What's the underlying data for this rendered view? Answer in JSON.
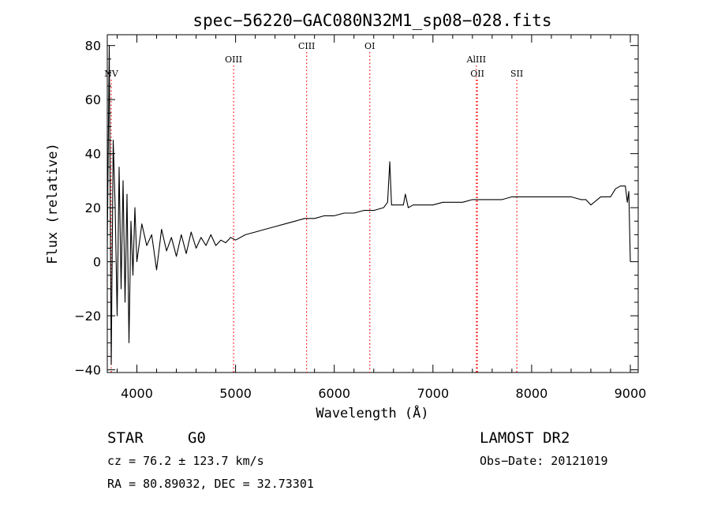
{
  "chart_data": {
    "type": "line",
    "title": "spec−56220−GAC080N32M1_sp08−028.fits",
    "xlabel": "Wavelength (Å)",
    "ylabel": "Flux (relative)",
    "xlim": [
      3700,
      9080
    ],
    "ylim": [
      -41,
      84
    ],
    "x_ticks": [
      4000,
      5000,
      6000,
      7000,
      8000,
      9000
    ],
    "y_ticks": [
      -40,
      -20,
      0,
      20,
      40,
      60,
      80
    ],
    "x_tick_labels": [
      "4000",
      "5000",
      "6000",
      "7000",
      "8000",
      "9000"
    ],
    "y_tick_labels": [
      "−40",
      "−20",
      "0",
      "20",
      "40",
      "60",
      "80"
    ],
    "grid": false,
    "line_color": "#000000",
    "marker_color": "#ff0000",
    "spectral_lines": [
      {
        "label": "NV",
        "x": 3740,
        "row": 2
      },
      {
        "label": "OIII",
        "x": 4980,
        "row": 1
      },
      {
        "label": "CIII",
        "x": 5720,
        "row": 0
      },
      {
        "label": "OI",
        "x": 6360,
        "row": 0
      },
      {
        "label": "AlIII",
        "x": 7440,
        "row": 1
      },
      {
        "label": "OII",
        "x": 7450,
        "row": 2
      },
      {
        "label": "SII",
        "x": 7850,
        "row": 2
      }
    ],
    "series": [
      {
        "x": [
          3700,
          3720,
          3740,
          3760,
          3780,
          3800,
          3820,
          3840,
          3860,
          3880,
          3900,
          3920,
          3940,
          3960,
          3980,
          4000,
          4050,
          4100,
          4150,
          4200,
          4250,
          4300,
          4350,
          4400,
          4450,
          4500,
          4550,
          4600,
          4650,
          4700,
          4750,
          4800,
          4850,
          4900,
          4950,
          5000,
          5100,
          5200,
          5300,
          5400,
          5500,
          5600,
          5700,
          5800,
          5900,
          6000,
          6100,
          6200,
          6300,
          6400,
          6500,
          6540,
          6563,
          6580,
          6600,
          6650,
          6700,
          6720,
          6750,
          6800,
          6900,
          7000,
          7100,
          7200,
          7300,
          7400,
          7500,
          7600,
          7700,
          7800,
          7900,
          8000,
          8100,
          8200,
          8300,
          8400,
          8500,
          8550,
          8600,
          8700,
          8800,
          8850,
          8900,
          8950,
          8970,
          8985,
          9000
        ],
        "values": [
          5,
          80,
          -38,
          45,
          20,
          -20,
          35,
          -10,
          30,
          -15,
          25,
          -30,
          15,
          -5,
          20,
          0,
          14,
          6,
          10,
          -3,
          12,
          4,
          9,
          2,
          10,
          3,
          11,
          5,
          9,
          6,
          10,
          6,
          8,
          7,
          9,
          8,
          10,
          11,
          12,
          13,
          14,
          15,
          16,
          16,
          17,
          17,
          18,
          18,
          19,
          19,
          20,
          22,
          37,
          21,
          21,
          21,
          21,
          25,
          20,
          21,
          21,
          21,
          22,
          22,
          22,
          23,
          23,
          23,
          23,
          24,
          24,
          24,
          24,
          24,
          24,
          24,
          23,
          23,
          21,
          24,
          24,
          27,
          28,
          28,
          22,
          26,
          0
        ]
      }
    ]
  },
  "footer": {
    "object_class": "STAR",
    "subclass": "G0",
    "survey": "LAMOST DR2",
    "cz": "cz = 76.2 ± 123.7 km/s",
    "obs_date": "Obs−Date: 20121019",
    "coords": "RA =  80.89032, DEC =  32.73301"
  }
}
